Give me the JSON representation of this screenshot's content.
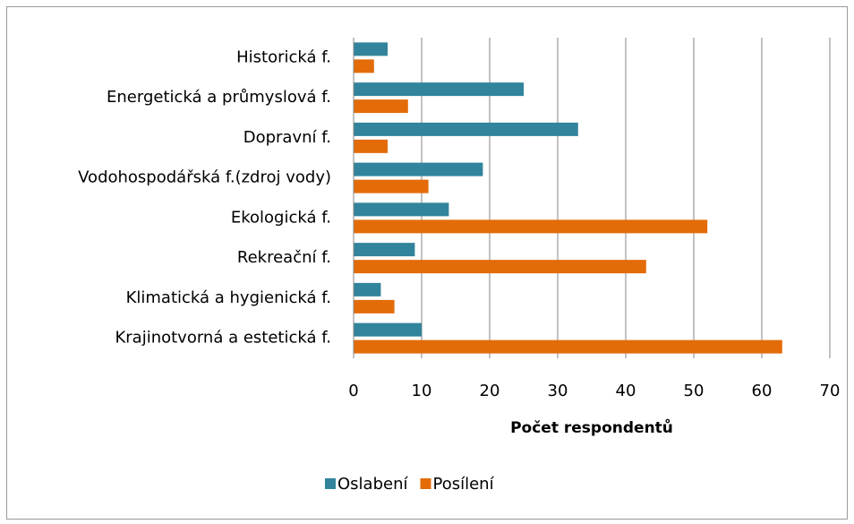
{
  "chart_data": {
    "type": "bar",
    "orientation": "horizontal",
    "x_label": "Počet respondentů",
    "categories": [
      "Historická f.",
      "Energetická a průmyslová f.",
      "Dopravní f.",
      "Vodohospodářská f.(zdroj vody)",
      "Ekologická f.",
      "Rekreační f.",
      "Klimatická a hygienická f.",
      "Krajinotvorná a estetická f."
    ],
    "series": [
      {
        "name": "Oslabení",
        "color": "#31849b",
        "values": [
          5,
          25,
          33,
          19,
          14,
          9,
          4,
          10
        ]
      },
      {
        "name": "Posílení",
        "color": "#e36c09",
        "values": [
          3,
          8,
          5,
          11,
          52,
          43,
          6,
          63
        ]
      }
    ],
    "xlim": [
      0,
      70
    ],
    "xticks": [
      0,
      10,
      20,
      30,
      40,
      50,
      60,
      70
    ],
    "grid": true,
    "legend": "bottom"
  }
}
